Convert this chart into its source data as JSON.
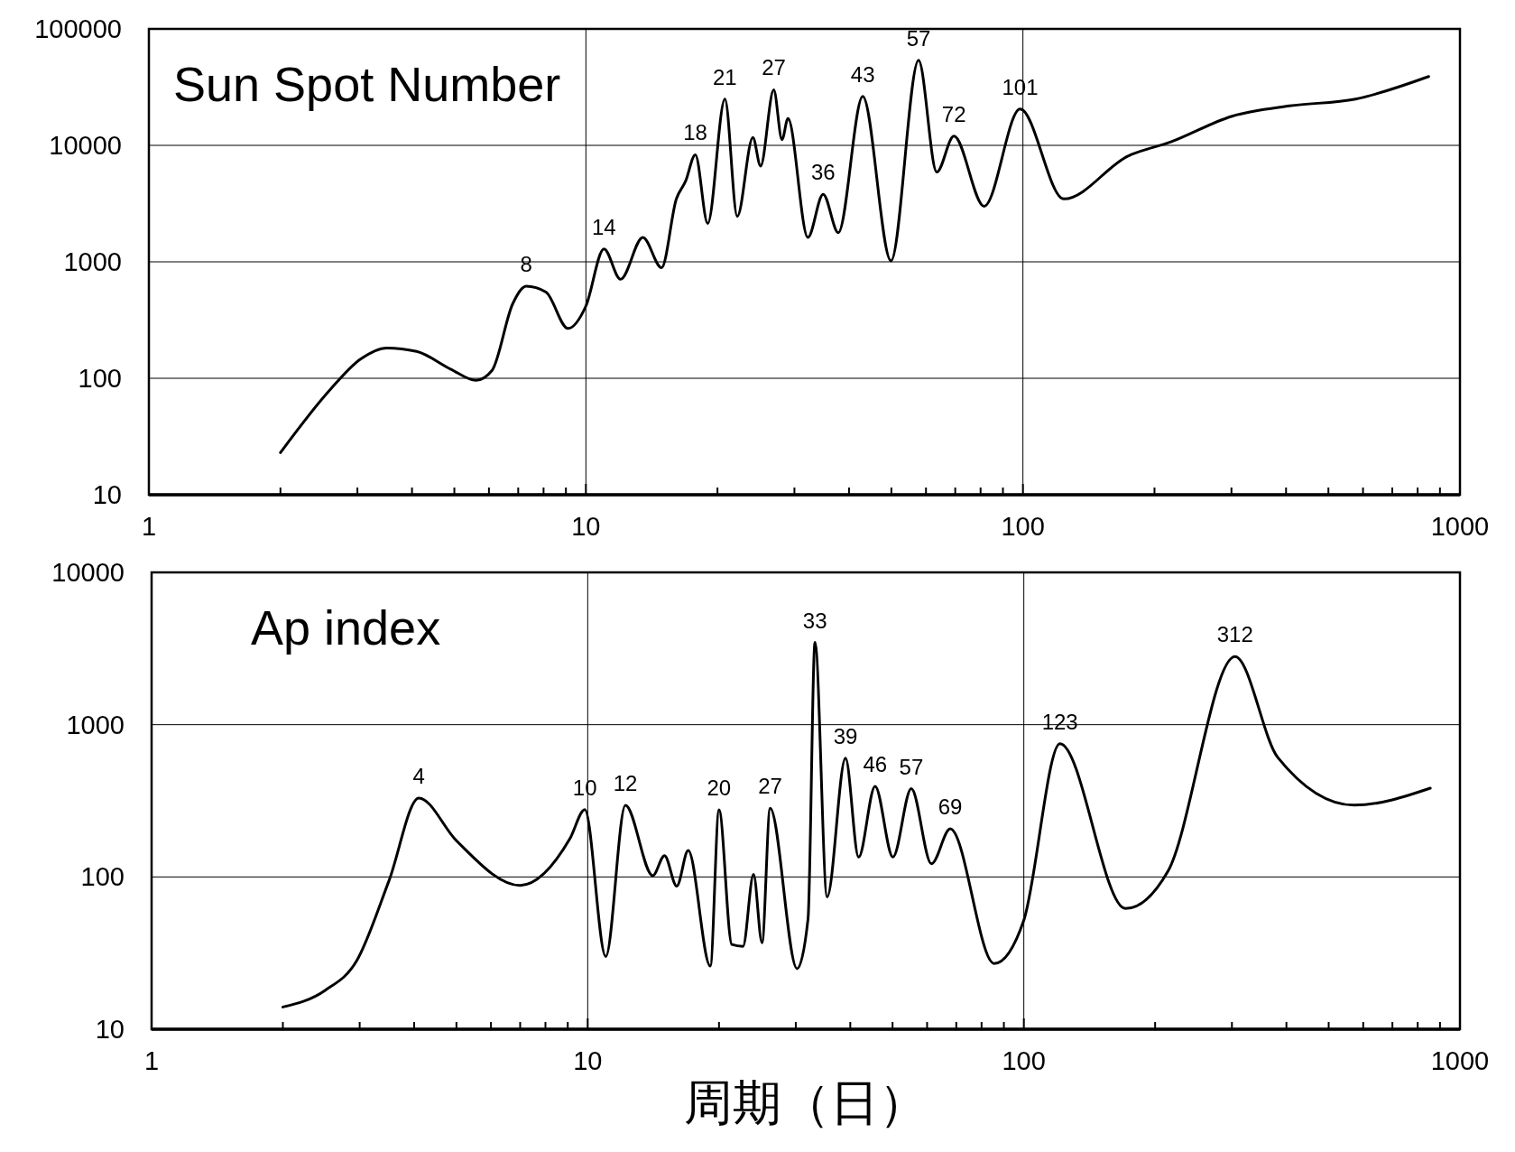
{
  "chart_data": [
    {
      "type": "line",
      "title": "Sun Spot Number",
      "log": "xy",
      "grid": true,
      "xlim": [
        1,
        1000
      ],
      "ylim": [
        10,
        100000
      ],
      "xticks": [
        1,
        {
          "value": 2,
          "label": null
        },
        {
          "value": 3,
          "label": null
        },
        {
          "value": 4,
          "label": null
        },
        {
          "value": 5,
          "label": null
        },
        {
          "value": 6,
          "label": null
        },
        {
          "value": 7,
          "label": null
        },
        {
          "value": 8,
          "label": null
        },
        {
          "value": 9,
          "label": null
        },
        10,
        {
          "value": 20,
          "label": null
        },
        {
          "value": 30,
          "label": null
        },
        {
          "value": 40,
          "label": null
        },
        {
          "value": 50,
          "label": null
        },
        {
          "value": 60,
          "label": null
        },
        {
          "value": 70,
          "label": null
        },
        {
          "value": 80,
          "label": null
        },
        {
          "value": 90,
          "label": null
        },
        100,
        {
          "value": 200,
          "label": null
        },
        {
          "value": 300,
          "label": null
        },
        {
          "value": 400,
          "label": null
        },
        {
          "value": 500,
          "label": null
        },
        {
          "value": 600,
          "label": null
        },
        {
          "value": 700,
          "label": null
        },
        {
          "value": 800,
          "label": null
        },
        {
          "value": 900,
          "label": null
        },
        1000
      ],
      "yticks": [
        10,
        100,
        1000,
        10000,
        100000
      ],
      "series": [
        {
          "color": "#000000",
          "x": [
            2,
            2.6,
            3.05,
            3.5,
            4.1,
            4.9,
            5.6,
            6.1,
            6.8,
            7.3,
            8.1,
            9.1,
            10,
            11,
            12,
            13.5,
            14.9,
            16.1,
            16.9,
            17.8,
            19,
            20.8,
            22.2,
            24.1,
            25.1,
            26.9,
            28.1,
            29,
            32.2,
            34.9,
            37.8,
            43,
            49.9,
            57.7,
            63.5,
            69.5,
            81.5,
            98.5,
            124,
            174,
            218,
            301,
            407,
            577,
            848
          ],
          "values": [
            23,
            80,
            146,
            182,
            170,
            120,
            96,
            117,
            436,
            617,
            550,
            268,
            417,
            1290,
            708,
            1620,
            890,
            3460,
            4900,
            8300,
            2140,
            25000,
            2450,
            11700,
            6640,
            30000,
            11200,
            17000,
            1620,
            3800,
            1780,
            26300,
            1020,
            53700,
            5900,
            12000,
            3000,
            20500,
            3470,
            8100,
            10700,
            17800,
            21800,
            25000,
            39000
          ]
        }
      ],
      "annotations": [
        {
          "text": "8",
          "x": 7.3,
          "y": 617
        },
        {
          "text": "14",
          "x": 11,
          "y": 1290
        },
        {
          "text": "18",
          "x": 17.8,
          "y": 8300
        },
        {
          "text": "21",
          "x": 20.8,
          "y": 25000
        },
        {
          "text": "27",
          "x": 26.9,
          "y": 30000
        },
        {
          "text": "36",
          "x": 34.9,
          "y": 3800
        },
        {
          "text": "43",
          "x": 43,
          "y": 26300
        },
        {
          "text": "57",
          "x": 57.7,
          "y": 53700
        },
        {
          "text": "72",
          "x": 69.5,
          "y": 12000
        },
        {
          "text": "101",
          "x": 98.5,
          "y": 20500
        }
      ]
    },
    {
      "type": "line",
      "title": "Ap index",
      "xlabel": "周期（日）",
      "log": "xy",
      "grid": true,
      "xlim": [
        1,
        1000
      ],
      "ylim": [
        10,
        10000
      ],
      "xticks": [
        1,
        {
          "value": 2,
          "label": null
        },
        {
          "value": 3,
          "label": null
        },
        {
          "value": 4,
          "label": null
        },
        {
          "value": 5,
          "label": null
        },
        {
          "value": 6,
          "label": null
        },
        {
          "value": 7,
          "label": null
        },
        {
          "value": 8,
          "label": null
        },
        {
          "value": 9,
          "label": null
        },
        10,
        {
          "value": 20,
          "label": null
        },
        {
          "value": 30,
          "label": null
        },
        {
          "value": 40,
          "label": null
        },
        {
          "value": 50,
          "label": null
        },
        {
          "value": 60,
          "label": null
        },
        {
          "value": 70,
          "label": null
        },
        {
          "value": 80,
          "label": null
        },
        {
          "value": 90,
          "label": null
        },
        100,
        {
          "value": 200,
          "label": null
        },
        {
          "value": 300,
          "label": null
        },
        {
          "value": 400,
          "label": null
        },
        {
          "value": 500,
          "label": null
        },
        {
          "value": 600,
          "label": null
        },
        {
          "value": 700,
          "label": null
        },
        {
          "value": 800,
          "label": null
        },
        {
          "value": 900,
          "label": null
        },
        1000
      ],
      "yticks": [
        10,
        100,
        1000,
        10000
      ],
      "series": [
        {
          "color": "#000000",
          "x": [
            2,
            2.5,
            2.95,
            3.5,
            4.1,
            5,
            7,
            9.1,
            9.85,
            11,
            12.2,
            14.1,
            15,
            16,
            17,
            19.1,
            20,
            21.4,
            22.7,
            24,
            25.1,
            26.2,
            30.2,
            32,
            33.2,
            35.4,
            39,
            41.8,
            45.6,
            50.1,
            55.2,
            61.4,
            67.8,
            85.5,
            100,
            121,
            171,
            214,
            305,
            382,
            572,
            855
          ],
          "values": [
            14,
            18,
            28,
            94,
            330,
            173,
            88,
            178,
            277,
            30,
            295,
            102,
            138,
            87,
            149,
            26,
            276,
            36,
            35,
            104,
            37,
            283,
            25,
            53,
            3470,
            74,
            603,
            135,
            394,
            135,
            380,
            122,
            207,
            27,
            52,
            750,
            62,
            109,
            2800,
            610,
            296,
            383
          ]
        }
      ],
      "annotations": [
        {
          "text": "4",
          "x": 4.1,
          "y": 330
        },
        {
          "text": "10",
          "x": 9.85,
          "y": 277
        },
        {
          "text": "12",
          "x": 12.2,
          "y": 295
        },
        {
          "text": "20",
          "x": 20,
          "y": 276
        },
        {
          "text": "27",
          "x": 26.2,
          "y": 283
        },
        {
          "text": "33",
          "x": 33.2,
          "y": 3470
        },
        {
          "text": "39",
          "x": 39,
          "y": 603
        },
        {
          "text": "46",
          "x": 45.6,
          "y": 394
        },
        {
          "text": "57",
          "x": 55.2,
          "y": 380
        },
        {
          "text": "69",
          "x": 67.8,
          "y": 207
        },
        {
          "text": "123",
          "x": 121,
          "y": 750
        },
        {
          "text": "312",
          "x": 305,
          "y": 2800
        }
      ]
    }
  ]
}
